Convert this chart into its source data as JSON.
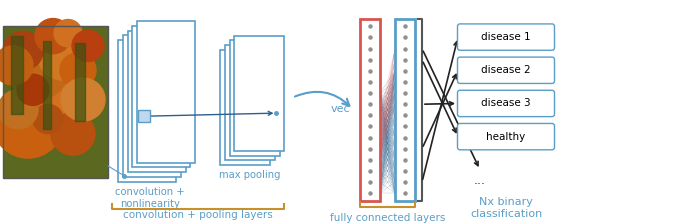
{
  "bg_color": "#ffffff",
  "blue_color": "#5a9ec8",
  "red_color": "#d9534f",
  "orange_color": "#c8902a",
  "dark_blue": "#2c5f8a",
  "label_blue": "#5a9ec8",
  "arrow_color": "#333333",
  "text_conv": "convolution +\nnonlinearity",
  "text_pool": "max pooling",
  "text_conv_pool": "convolution + pooling layers",
  "text_vec": "vec",
  "text_fc": "fully connected layers",
  "text_nx": "Nx binary\nclassification",
  "text_disease1": "disease 1",
  "text_disease2": "disease 2",
  "text_disease3": "disease 3",
  "text_healthy": "healthy",
  "text_dots": "...",
  "figw": 6.85,
  "figh": 2.24,
  "dpi": 100
}
